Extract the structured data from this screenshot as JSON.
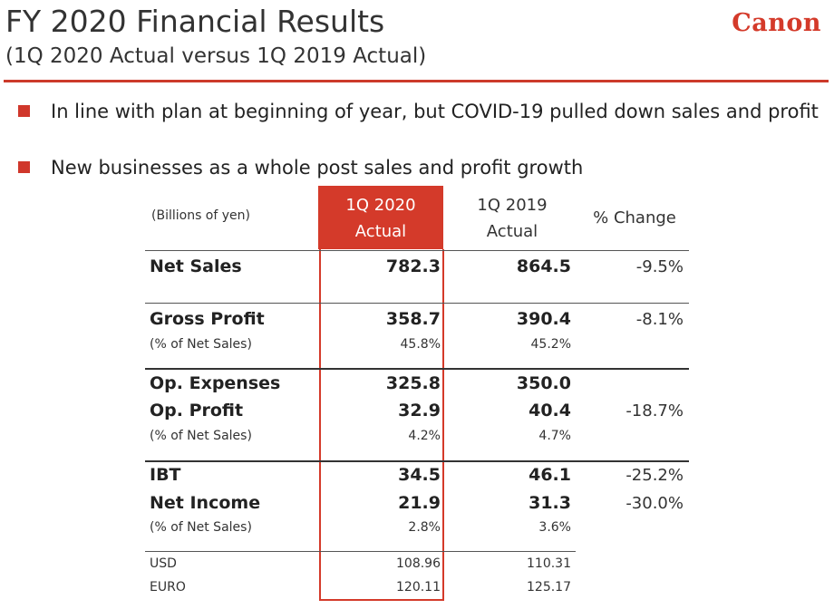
{
  "header": {
    "title": "FY 2020 Financial Results",
    "subtitle": "(1Q 2020 Actual versus 1Q 2019 Actual)",
    "logo": "Canon"
  },
  "bullets": [
    "In line with plan at beginning of year, but COVID-19 pulled down sales and profit",
    "New businesses as a whole post sales and profit growth"
  ],
  "table": {
    "units": "(Billions of yen)",
    "headers": {
      "col1_line1": "1Q 2020",
      "col1_line2": "Actual",
      "col2_line1": "1Q 2019",
      "col2_line2": "Actual",
      "col3": "% Change"
    },
    "rows": {
      "net_sales": {
        "label": "Net Sales",
        "q2020": "782.3",
        "q2019": "864.5",
        "change": "-9.5%"
      },
      "gross_profit": {
        "label": "Gross Profit",
        "q2020": "358.7",
        "q2019": "390.4",
        "change": "-8.1%"
      },
      "gp_pct": {
        "label": "(% of Net Sales)",
        "q2020": "45.8%",
        "q2019": "45.2%"
      },
      "op_expenses": {
        "label": "Op. Expenses",
        "q2020": "325.8",
        "q2019": "350.0"
      },
      "op_profit": {
        "label": "Op. Profit",
        "q2020": "32.9",
        "q2019": "40.4",
        "change": "-18.7%"
      },
      "op_pct": {
        "label": "(% of Net Sales)",
        "q2020": "4.2%",
        "q2019": "4.7%"
      },
      "ibt": {
        "label": "IBT",
        "q2020": "34.5",
        "q2019": "46.1",
        "change": "-25.2%"
      },
      "net_income": {
        "label": "Net Income",
        "q2020": "21.9",
        "q2019": "31.3",
        "change": "-30.0%"
      },
      "ni_pct": {
        "label": "(% of Net Sales)",
        "q2020": "2.8%",
        "q2019": "3.6%"
      },
      "usd": {
        "label": "USD",
        "q2020": "108.96",
        "q2019": "110.31"
      },
      "euro": {
        "label": "EURO",
        "q2020": "120.11",
        "q2019": "125.17"
      }
    }
  },
  "colors": {
    "accent": "#d43a2a",
    "text": "#222222"
  }
}
